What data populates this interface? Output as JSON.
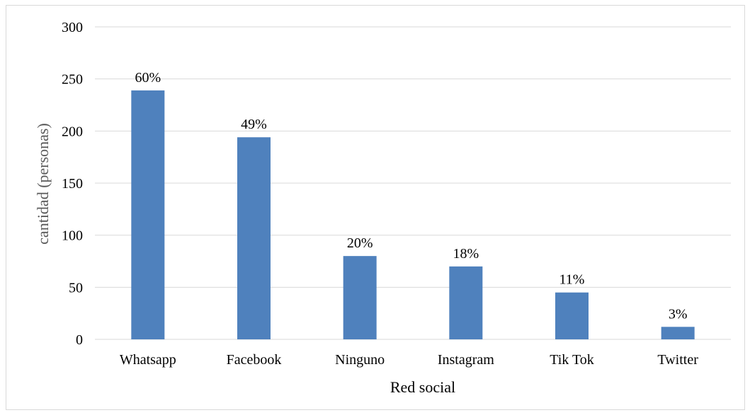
{
  "chart_data": {
    "type": "bar",
    "categories": [
      "Whatsapp",
      "Facebook",
      "Ninguno",
      "Instagram",
      "Tik Tok",
      "Twitter"
    ],
    "values": [
      239,
      194,
      80,
      70,
      45,
      12
    ],
    "data_labels": [
      "60%",
      "49%",
      "20%",
      "18%",
      "11%",
      "3%"
    ],
    "title": "",
    "xlabel": "Red social",
    "ylabel": "cantidad (personas)",
    "ylim": [
      0,
      300
    ],
    "yticks": [
      0,
      50,
      100,
      150,
      200,
      250,
      300
    ],
    "grid": true,
    "bar_color": "#4f81bd",
    "grid_color": "#d9d9d9"
  }
}
